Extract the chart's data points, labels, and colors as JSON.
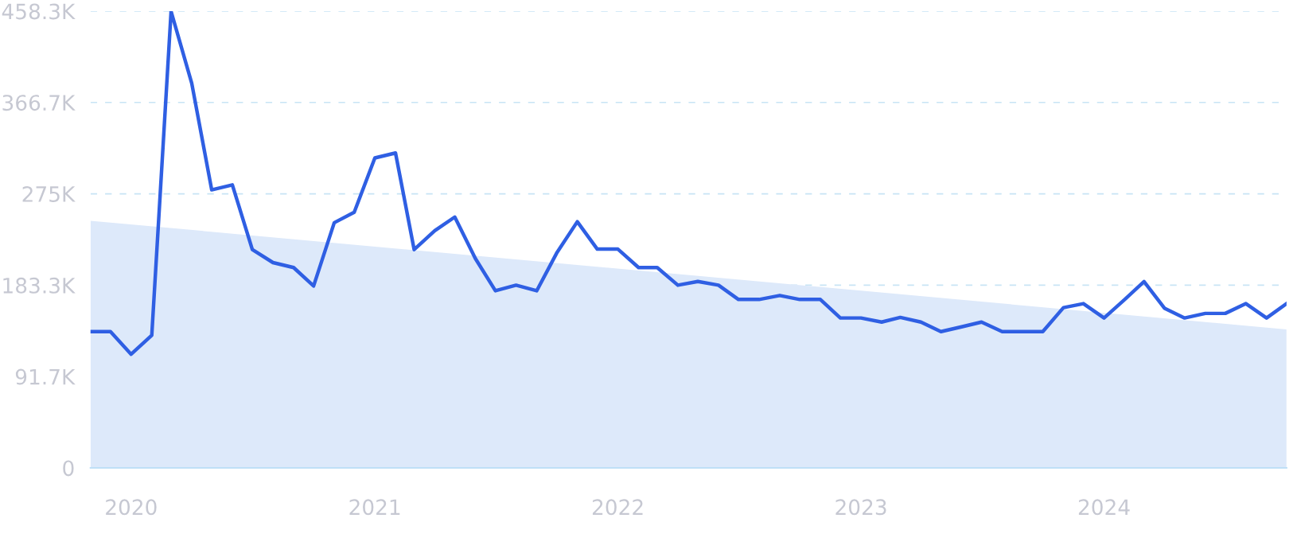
{
  "chart_data": {
    "type": "line",
    "x": [
      "2019-11",
      "2019-12",
      "2020-01",
      "2020-02",
      "2020-03",
      "2020-04",
      "2020-05",
      "2020-06",
      "2020-07",
      "2020-08",
      "2020-09",
      "2020-10",
      "2020-11",
      "2020-12",
      "2021-01",
      "2021-02",
      "2021-03",
      "2021-04",
      "2021-05",
      "2021-06",
      "2021-07",
      "2021-08",
      "2021-09",
      "2021-10",
      "2021-11",
      "2021-12",
      "2022-01",
      "2022-02",
      "2022-03",
      "2022-04",
      "2022-05",
      "2022-06",
      "2022-07",
      "2022-08",
      "2022-09",
      "2022-10",
      "2022-11",
      "2022-12",
      "2023-01",
      "2023-02",
      "2023-03",
      "2023-04",
      "2023-05",
      "2023-06",
      "2023-07",
      "2023-08",
      "2023-09",
      "2023-10",
      "2023-11",
      "2023-12",
      "2024-01",
      "2024-02",
      "2024-03",
      "2024-04",
      "2024-05",
      "2024-06",
      "2024-07",
      "2024-08",
      "2024-09",
      "2024-10"
    ],
    "series": [
      {
        "type": "area",
        "color": "#dde9fa",
        "x": [
          "2019-11",
          "2024-10"
        ],
        "values": [
          248000,
          139000
        ]
      },
      {
        "color": "#2f5fe3",
        "values": [
          136700,
          136700,
          114000,
          133000,
          458000,
          386000,
          279000,
          284000,
          219000,
          206000,
          201000,
          182500,
          246000,
          256500,
          311000,
          316000,
          219000,
          238000,
          251700,
          210000,
          177700,
          183300,
          177700,
          215500,
          247000,
          219500,
          219500,
          201000,
          201000,
          183300,
          187000,
          183300,
          169000,
          169000,
          173000,
          169000,
          169000,
          150400,
          150400,
          146300,
          151000,
          146300,
          136700,
          141500,
          146300,
          136700,
          136700,
          136700,
          160800,
          164800,
          150400,
          169000,
          187000,
          160000,
          150400,
          155000,
          155000,
          164800,
          150400,
          164800
        ]
      }
    ],
    "xlim": [
      "2019-11",
      "2024-10"
    ],
    "xticks": [
      {
        "value": "2020-01",
        "label": "2020"
      },
      {
        "value": "2021-01",
        "label": "2021"
      },
      {
        "value": "2022-01",
        "label": "2022"
      },
      {
        "value": "2023-01",
        "label": "2023"
      },
      {
        "value": "2024-01",
        "label": "2024"
      }
    ],
    "ylim": [
      0,
      458300
    ],
    "yticks": [
      0,
      {
        "value": 91700,
        "label": "91.7K"
      },
      {
        "value": 183300,
        "label": "183.3K"
      },
      {
        "value": 275000,
        "label": "275K"
      },
      {
        "value": 366700,
        "label": "366.7K"
      },
      {
        "value": 458300,
        "label": "458.3K"
      }
    ],
    "grid": "y",
    "line_style": "solid",
    "marker": "none"
  }
}
